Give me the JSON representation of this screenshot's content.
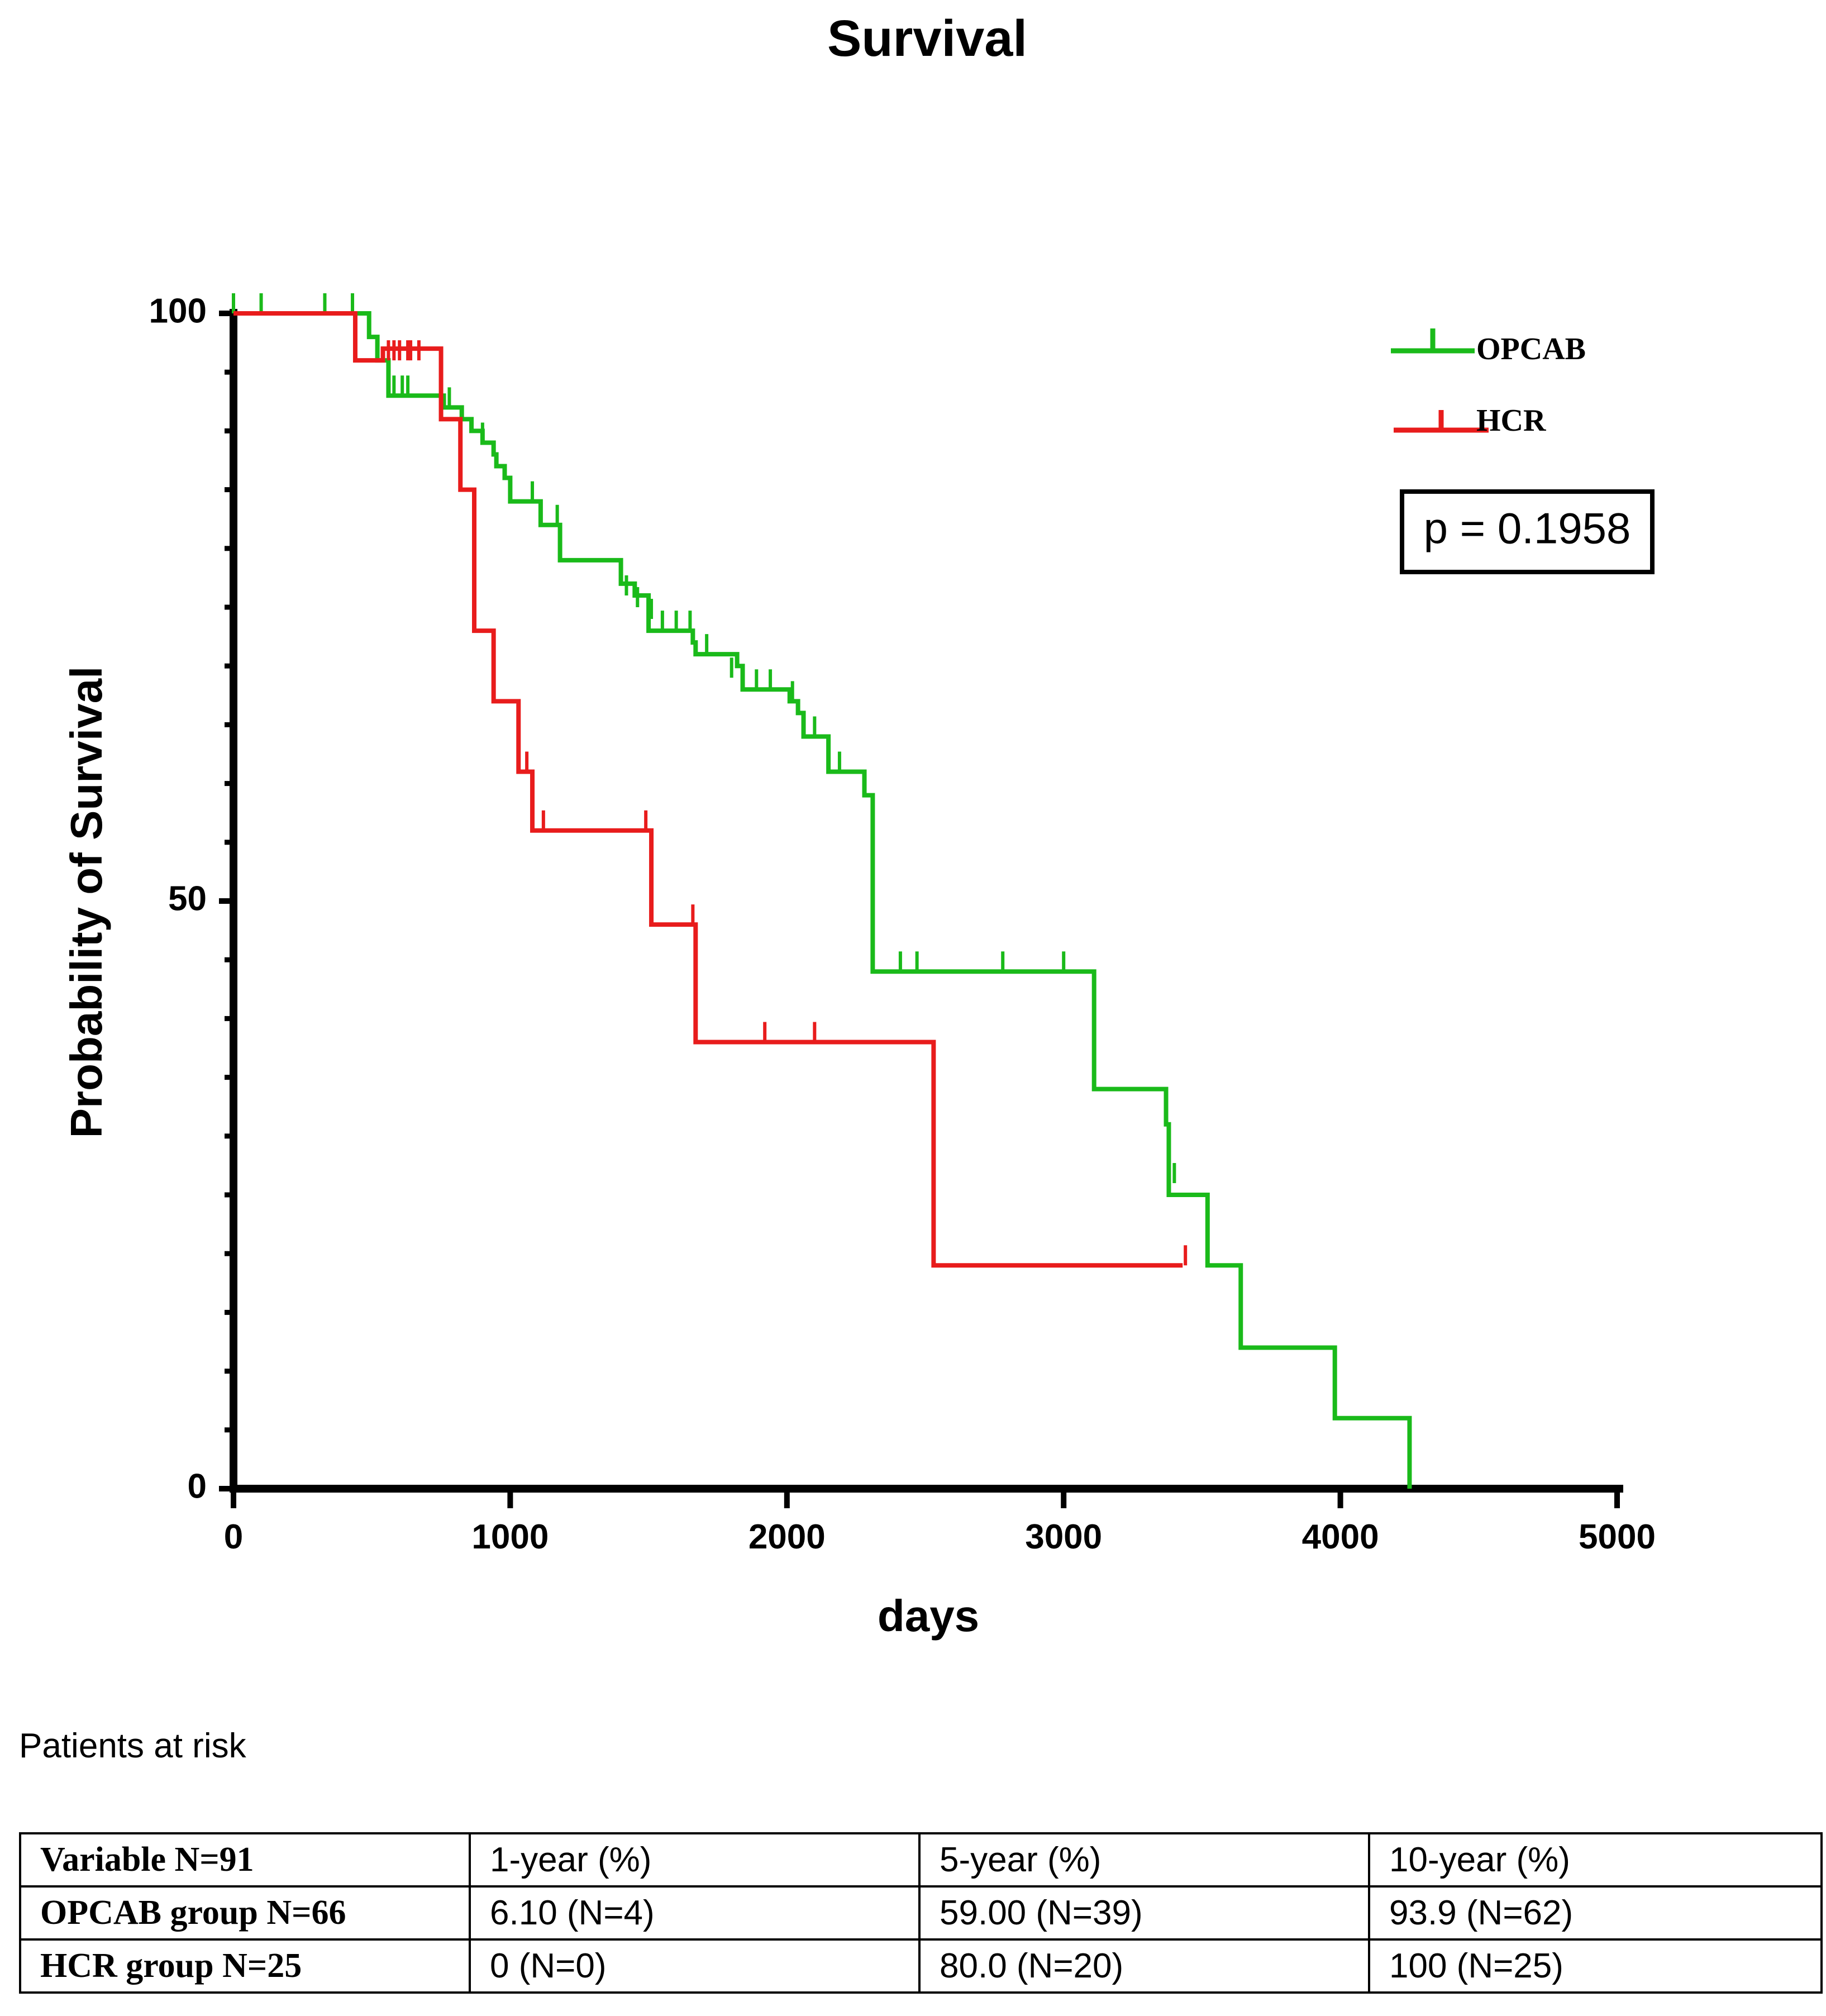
{
  "chart_data": {
    "type": "line",
    "title": "Survival",
    "xlabel": "days",
    "ylabel": "Probability of Survival",
    "xlim": [
      0,
      5000
    ],
    "ylim": [
      0,
      100
    ],
    "xticks": [
      0,
      1000,
      2000,
      3000,
      4000,
      5000
    ],
    "xtick_labels": [
      "0",
      "1000",
      "2000",
      "3000",
      "4000",
      "5000"
    ],
    "yticks_labeled": [
      0,
      50,
      100
    ],
    "ytick_labels": [
      "0",
      "50",
      "100"
    ],
    "y_minor_step": 5,
    "legend_position": "top-right",
    "annotation": "p = 0.1958",
    "series": [
      {
        "name": "OPCAB",
        "color": "#1aba1a",
        "steps": [
          [
            0,
            100
          ],
          [
            480,
            100
          ],
          [
            490,
            98
          ],
          [
            520,
            96
          ],
          [
            560,
            94
          ],
          [
            560,
            93
          ],
          [
            750,
            93
          ],
          [
            760,
            92
          ],
          [
            820,
            92
          ],
          [
            825,
            91
          ],
          [
            860,
            90
          ],
          [
            900,
            89
          ],
          [
            940,
            88
          ],
          [
            950,
            87
          ],
          [
            980,
            86
          ],
          [
            1000,
            84
          ],
          [
            1100,
            84
          ],
          [
            1110,
            82
          ],
          [
            1180,
            82
          ],
          [
            1180,
            79
          ],
          [
            1380,
            79
          ],
          [
            1400,
            77
          ],
          [
            1450,
            76
          ],
          [
            1500,
            75
          ],
          [
            1500,
            73
          ],
          [
            1640,
            73
          ],
          [
            1660,
            72
          ],
          [
            1670,
            71
          ],
          [
            1800,
            71
          ],
          [
            1820,
            70
          ],
          [
            1840,
            68
          ],
          [
            2000,
            68
          ],
          [
            2010,
            67
          ],
          [
            2040,
            66
          ],
          [
            2060,
            64
          ],
          [
            2140,
            64
          ],
          [
            2150,
            61
          ],
          [
            2270,
            61
          ],
          [
            2280,
            59
          ],
          [
            2310,
            57
          ],
          [
            2310,
            44
          ],
          [
            3100,
            44
          ],
          [
            3110,
            40
          ],
          [
            3110,
            34
          ],
          [
            3360,
            34
          ],
          [
            3370,
            31
          ],
          [
            3380,
            29
          ],
          [
            3380,
            25
          ],
          [
            3520,
            25
          ],
          [
            3520,
            19
          ],
          [
            3640,
            19
          ],
          [
            3640,
            12
          ],
          [
            3980,
            12
          ],
          [
            3980,
            6
          ],
          [
            4250,
            6
          ],
          [
            4250,
            0
          ]
        ],
        "censored": [
          [
            0,
            100
          ],
          [
            100,
            100
          ],
          [
            330,
            100
          ],
          [
            430,
            100
          ],
          [
            580,
            93
          ],
          [
            610,
            93
          ],
          [
            630,
            93
          ],
          [
            780,
            92
          ],
          [
            900,
            89
          ],
          [
            1000,
            84
          ],
          [
            1080,
            84
          ],
          [
            1170,
            82
          ],
          [
            1420,
            76
          ],
          [
            1460,
            75
          ],
          [
            1510,
            74
          ],
          [
            1550,
            73
          ],
          [
            1600,
            73
          ],
          [
            1650,
            73
          ],
          [
            1710,
            71
          ],
          [
            1800,
            69
          ],
          [
            1840,
            68
          ],
          [
            1890,
            68
          ],
          [
            1940,
            68
          ],
          [
            2020,
            67
          ],
          [
            2100,
            64
          ],
          [
            2190,
            61
          ],
          [
            2410,
            44
          ],
          [
            2470,
            44
          ],
          [
            2780,
            44
          ],
          [
            3000,
            44
          ],
          [
            3400,
            26
          ]
        ]
      },
      {
        "name": "HCR",
        "color": "#e81c1c",
        "steps": [
          [
            0,
            100
          ],
          [
            440,
            100
          ],
          [
            440,
            96
          ],
          [
            530,
            96
          ],
          [
            540,
            97
          ],
          [
            740,
            97
          ],
          [
            750,
            91
          ],
          [
            820,
            91
          ],
          [
            820,
            85
          ],
          [
            870,
            85
          ],
          [
            870,
            73
          ],
          [
            940,
            73
          ],
          [
            940,
            67
          ],
          [
            1030,
            67
          ],
          [
            1030,
            61
          ],
          [
            1080,
            61
          ],
          [
            1080,
            56
          ],
          [
            1500,
            56
          ],
          [
            1510,
            48
          ],
          [
            1660,
            48
          ],
          [
            1670,
            38
          ],
          [
            2530,
            38
          ],
          [
            2530,
            19
          ],
          [
            3430,
            19
          ]
        ],
        "censored": [
          [
            560,
            96
          ],
          [
            580,
            96
          ],
          [
            600,
            96
          ],
          [
            630,
            96
          ],
          [
            640,
            96
          ],
          [
            670,
            96
          ],
          [
            1060,
            61
          ],
          [
            1120,
            56
          ],
          [
            1490,
            56
          ],
          [
            1660,
            48
          ],
          [
            1920,
            38
          ],
          [
            2100,
            38
          ],
          [
            3440,
            19
          ]
        ]
      }
    ]
  },
  "risk_table": {
    "caption": "Patients at risk",
    "header": [
      "Variable N=91",
      "1-year (%)",
      "5-year (%)",
      "10-year (%)"
    ],
    "rows": [
      [
        "OPCAB group N=66",
        "6.10 (N=4)",
        "59.00 (N=39)",
        "93.9 (N=62)"
      ],
      [
        "HCR group N=25",
        "0 (N=0)",
        "80.0 (N=20)",
        "100 (N=25)"
      ]
    ]
  }
}
